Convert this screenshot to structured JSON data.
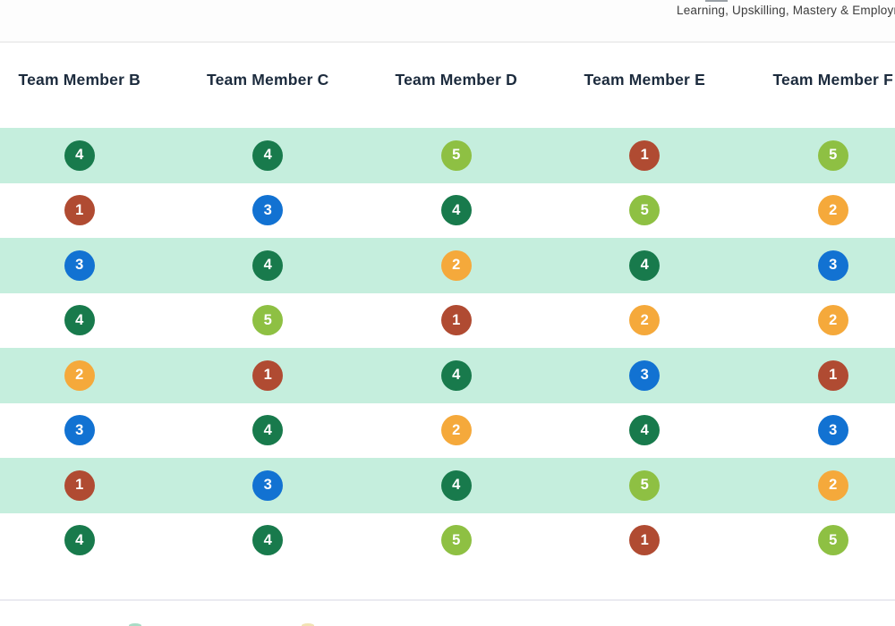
{
  "topbar": {
    "title": "Learning, Upskilling, Mastery & Employm"
  },
  "table": {
    "columns": [
      "Team Member B",
      "Team Member C",
      "Team Member D",
      "Team Member E",
      "Team Member F"
    ],
    "rows": [
      [
        4,
        4,
        5,
        1,
        5
      ],
      [
        1,
        3,
        4,
        5,
        2
      ],
      [
        3,
        4,
        2,
        4,
        3
      ],
      [
        4,
        5,
        1,
        2,
        2
      ],
      [
        2,
        1,
        4,
        3,
        1
      ],
      [
        3,
        4,
        2,
        4,
        3
      ],
      [
        1,
        3,
        4,
        5,
        2
      ],
      [
        4,
        4,
        5,
        1,
        5
      ]
    ]
  },
  "rating_colors": {
    "1": "#b04b32",
    "2": "#f5a93b",
    "3": "#1272d2",
    "4": "#187a4c",
    "5": "#8ec043"
  },
  "theme": {
    "stripe": "#c5eedd",
    "header_text": "#1c2b3d",
    "topbar_border": "#eeeeee",
    "divider": "#eaeaf1",
    "tip_teal": "#a9dcc6",
    "tip_yellow": "#f2e3b3"
  }
}
